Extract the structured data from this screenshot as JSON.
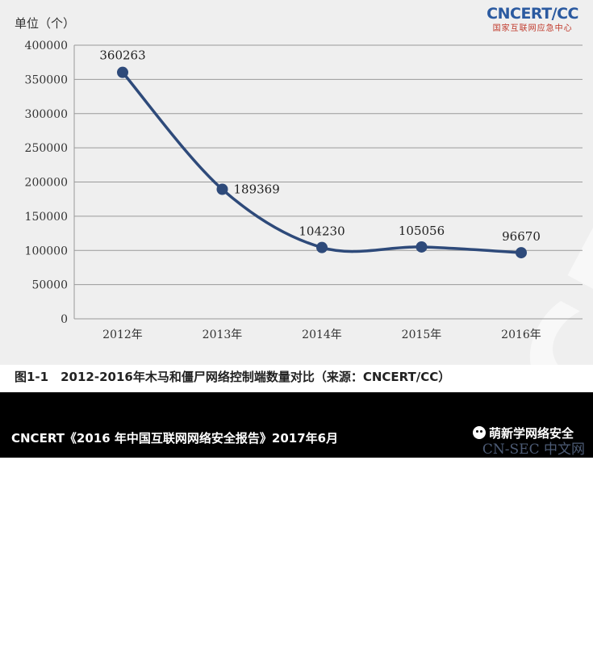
{
  "header": {
    "unit_label": "单位（个）",
    "logo_main": "CNCERT/CC",
    "logo_sub": "国家互联网应急中心",
    "watermark_text": "CNCERT/CC"
  },
  "caption": "图1-1　2012-2016年木马和僵尸网络控制端数量对比（来源：CNCERT/CC）",
  "footer": {
    "left_text": "CNCERT《2016 年中国互联网网络安全报告》2017年6月",
    "right_text": "萌新学网络安全",
    "site_watermark": "CN-SEC 中文网"
  },
  "colors": {
    "line": "#2e4a7a",
    "grid": "#9a9a9a",
    "axis_text": "#333333"
  },
  "chart_data": {
    "type": "line",
    "title": "",
    "xlabel": "",
    "ylabel": "单位（个）",
    "categories": [
      "2012年",
      "2013年",
      "2014年",
      "2015年",
      "2016年"
    ],
    "values": [
      360263,
      189369,
      104230,
      105056,
      96670
    ],
    "data_labels": [
      "360263",
      "189369",
      "104230",
      "105056",
      "96670"
    ],
    "ylim": [
      0,
      400000
    ],
    "yticks": [
      0,
      50000,
      100000,
      150000,
      200000,
      250000,
      300000,
      350000,
      400000
    ],
    "ytick_labels": [
      "0",
      "50000",
      "100000",
      "150000",
      "200000",
      "250000",
      "300000",
      "350000",
      "400000"
    ],
    "grid": true,
    "smooth": true
  }
}
